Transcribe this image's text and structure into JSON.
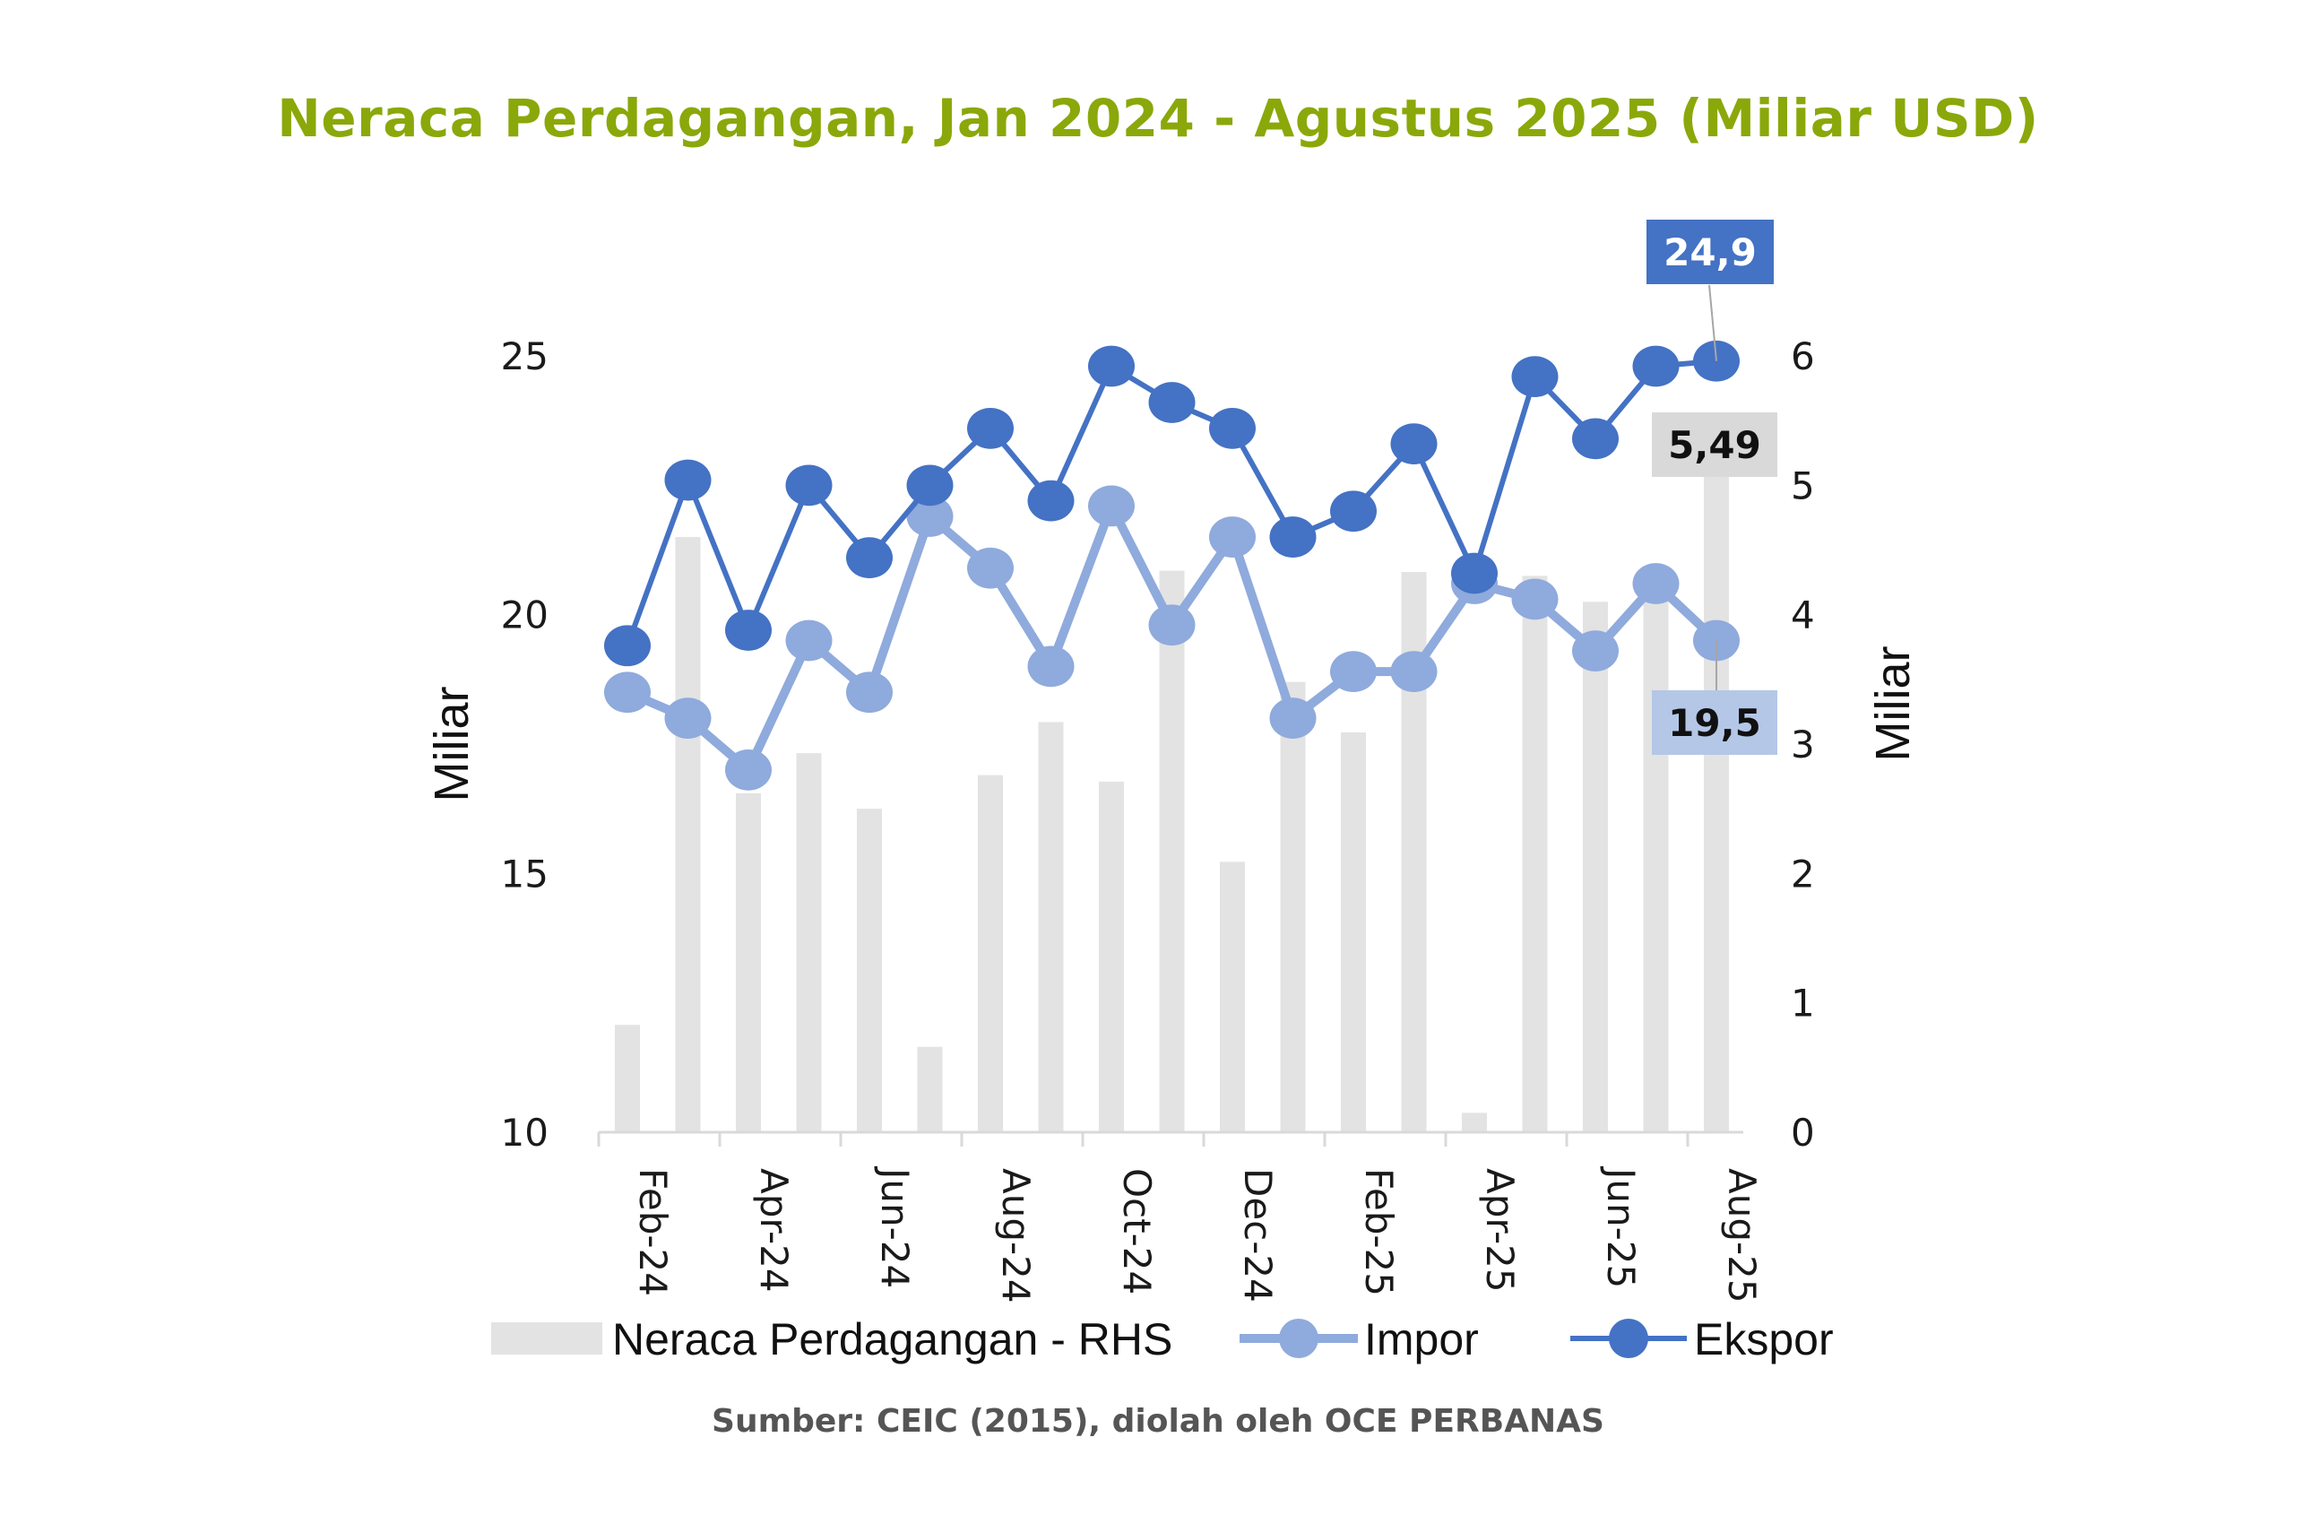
{
  "title": "Neraca Perdagangan, Jan 2024 - Agustus 2025 (Miliar USD)",
  "source": "Sumber: CEIC (2015), diolah oleh OCE PERBANAS",
  "colors": {
    "title": "#8aa80a",
    "ekspor": "#4472c4",
    "impor": "#8faadc",
    "neraca": "#e3e3e3",
    "label_ekspor_bg": "#4472c4",
    "label_impor_bg": "#b4c7e7",
    "label_neraca_bg": "#d9d9d9"
  },
  "chart_data": {
    "type": "bar+line",
    "title": "Neraca Perdagangan, Jan 2024 - Agustus 2025 (Miliar USD)",
    "categories": [
      "Feb-24",
      "Mar-24",
      "Apr-24",
      "May-24",
      "Jun-24",
      "Jul-24",
      "Aug-24",
      "Sep-24",
      "Oct-24",
      "Nov-24",
      "Dec-24",
      "Jan-25",
      "Feb-25",
      "Mar-25",
      "Apr-25",
      "May-25",
      "Jun-25",
      "Jul-25",
      "Aug-25"
    ],
    "x_tick_labels": [
      "Feb-24",
      "Apr-24",
      "Jun-24",
      "Aug-24",
      "Oct-24",
      "Dec-24",
      "Feb-25",
      "Apr-25",
      "Jun-25",
      "Aug-25"
    ],
    "ylabel_left": "Miliar",
    "ylabel_right": "Miliar",
    "ylim_left": [
      10,
      25
    ],
    "yticks_left": [
      10,
      15,
      20,
      25
    ],
    "ylim_right": [
      0,
      6
    ],
    "yticks_right": [
      0,
      1,
      2,
      3,
      4,
      5,
      6
    ],
    "grid": false,
    "legend_position": "bottom",
    "series": [
      {
        "name": "Neraca Perdagangan - RHS",
        "type": "bar",
        "axis": "right",
        "values": [
          0.83,
          4.6,
          2.62,
          2.93,
          2.5,
          0.66,
          2.76,
          3.17,
          2.71,
          4.34,
          2.09,
          3.48,
          3.09,
          4.33,
          0.15,
          4.3,
          4.1,
          4.17,
          5.49
        ]
      },
      {
        "name": "Impor",
        "type": "line",
        "axis": "left",
        "values": [
          18.5,
          18.0,
          17.0,
          19.5,
          18.5,
          21.9,
          20.9,
          19.0,
          22.1,
          19.8,
          21.5,
          18.0,
          18.9,
          18.9,
          20.6,
          20.3,
          19.3,
          20.6,
          19.5
        ]
      },
      {
        "name": "Ekspor",
        "type": "line",
        "axis": "left",
        "values": [
          19.4,
          22.6,
          19.7,
          22.5,
          21.1,
          22.5,
          23.6,
          22.2,
          24.8,
          24.1,
          23.6,
          21.5,
          22.0,
          23.3,
          20.8,
          24.6,
          23.4,
          24.8,
          24.9
        ]
      }
    ],
    "annotations": [
      {
        "series": "Ekspor",
        "category": "Aug-25",
        "text": "24,9"
      },
      {
        "series": "Neraca Perdagangan - RHS",
        "category": "Aug-25",
        "text": "5,49"
      },
      {
        "series": "Impor",
        "category": "Aug-25",
        "text": "19,5"
      }
    ]
  }
}
